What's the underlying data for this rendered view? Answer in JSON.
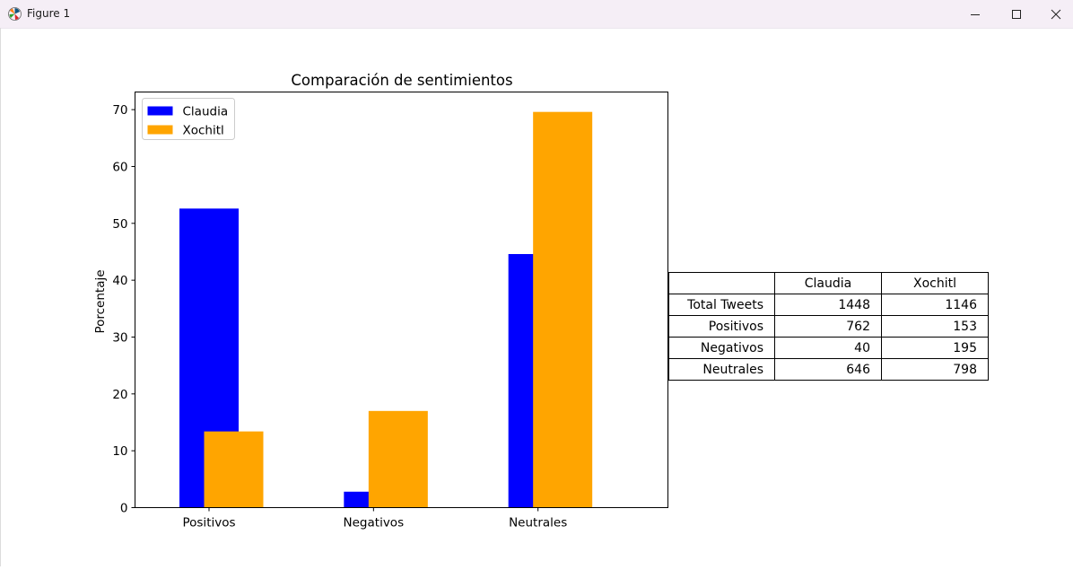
{
  "window": {
    "title": "Figure 1"
  },
  "chart_data": {
    "type": "bar",
    "title": "Comparación de sentimientos",
    "xlabel": "",
    "ylabel": "Porcentaje",
    "categories": [
      "Positivos",
      "Negativos",
      "Neutrales"
    ],
    "series": [
      {
        "name": "Claudia",
        "color": "#0000ff",
        "values": [
          52.6,
          2.8,
          44.6
        ]
      },
      {
        "name": "Xochitl",
        "color": "#ffa500",
        "values": [
          13.4,
          17.0,
          69.6
        ]
      }
    ],
    "ylim": [
      0,
      73.1
    ],
    "yticks": [
      "0",
      "10",
      "20",
      "30",
      "40",
      "50",
      "60",
      "70"
    ],
    "legend_position": "upper left",
    "grid": false
  },
  "table": {
    "columns": [
      "",
      "Claudia",
      "Xochitl"
    ],
    "rows": [
      [
        "Total Tweets",
        "1448",
        "1146"
      ],
      [
        "Positivos",
        "762",
        "153"
      ],
      [
        "Negativos",
        "40",
        "195"
      ],
      [
        "Neutrales",
        "646",
        "798"
      ]
    ]
  }
}
